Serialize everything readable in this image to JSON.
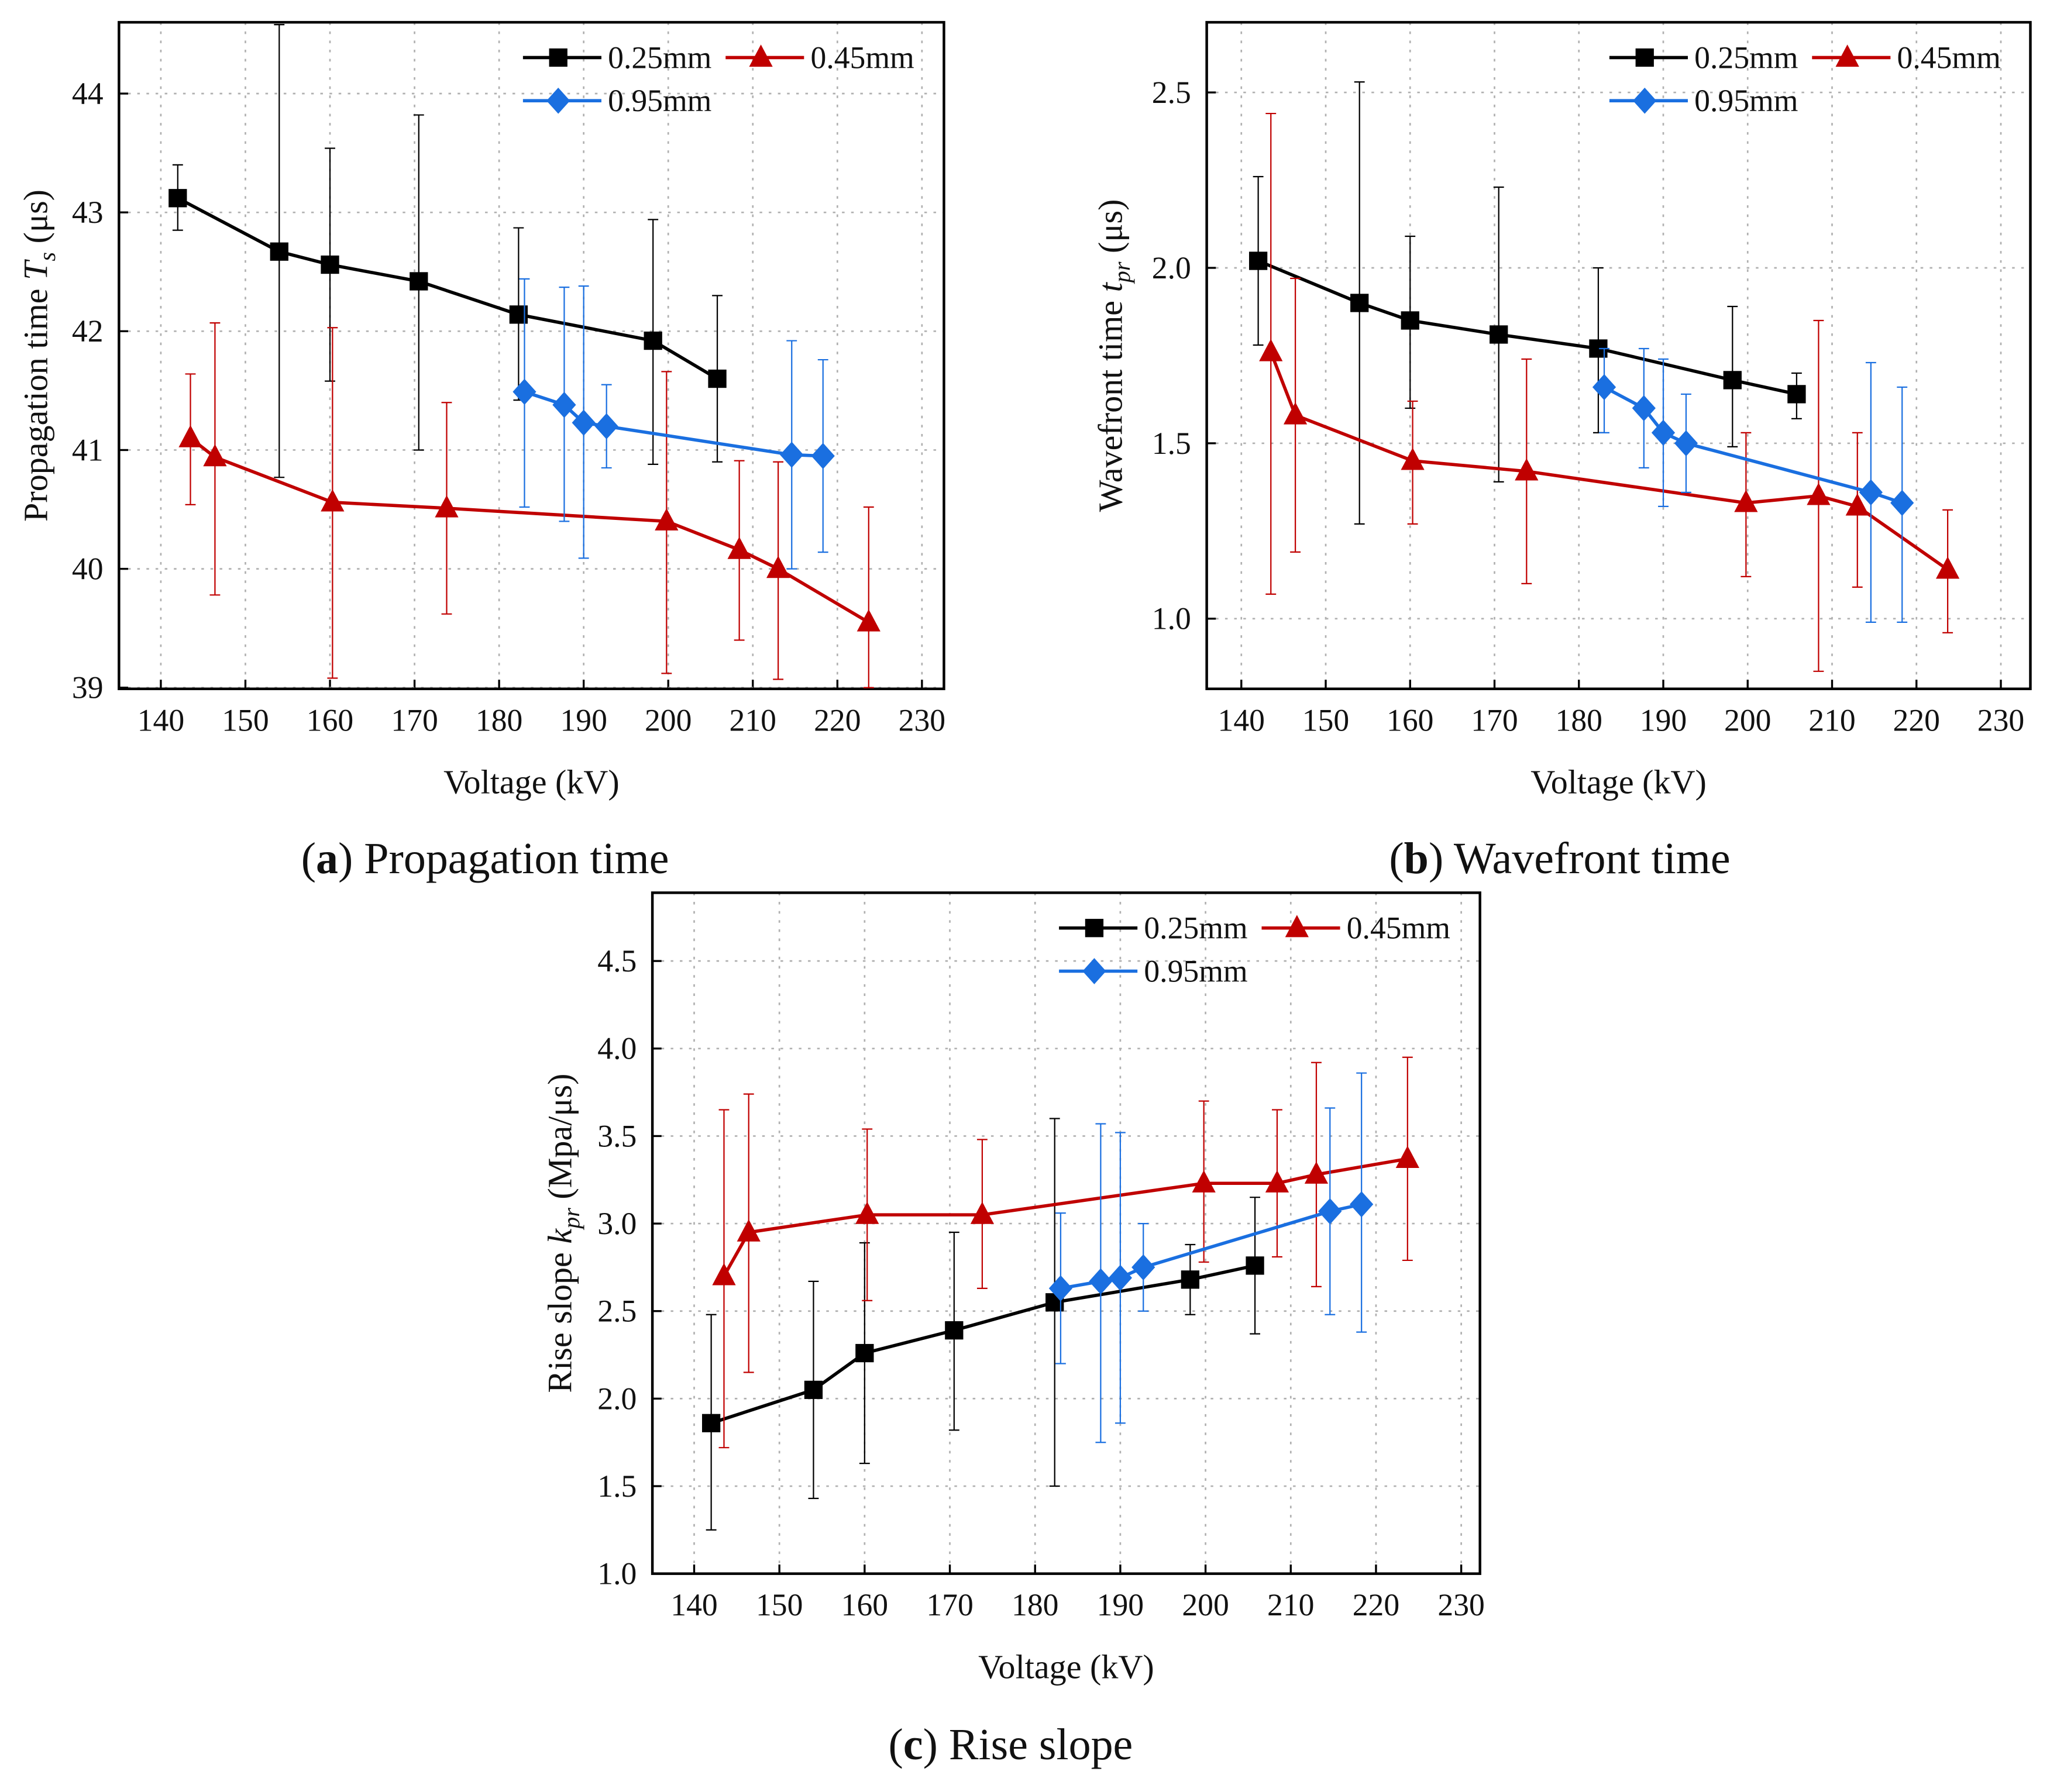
{
  "colors": {
    "s025": "#000000",
    "s045": "#c00000",
    "s095": "#1a6fe0",
    "grid": "#b0b0b0"
  },
  "chart_data": [
    {
      "id": "a",
      "type": "line",
      "caption": {
        "letter": "a",
        "text": " Propagation time"
      },
      "xlabel": "Voltage (kV)",
      "ylabel": {
        "text": "Propagation time ",
        "sym": "T",
        "sub": "s",
        "unit": " (μs)"
      },
      "xlim": [
        135.05,
        232.6
      ],
      "ylim": [
        38.99,
        44.6
      ],
      "xticks": [
        140,
        150,
        160,
        170,
        180,
        190,
        200,
        210,
        220,
        230
      ],
      "yticks": [
        39,
        40,
        41,
        42,
        43,
        44
      ],
      "ydec": 0,
      "series": [
        {
          "name": "0.25mm",
          "marker": "square",
          "color_key": "s025",
          "x": [
            142,
            154,
            160,
            170.5,
            182.3,
            198.2,
            205.8
          ],
          "y": [
            43.12,
            42.67,
            42.56,
            42.42,
            42.14,
            41.92,
            41.6
          ],
          "err_hi": [
            43.4,
            44.58,
            43.54,
            43.82,
            42.87,
            42.94,
            42.3
          ],
          "err_lo": [
            42.85,
            40.77,
            41.58,
            41.0,
            41.42,
            40.88,
            40.9
          ]
        },
        {
          "name": "0.45mm",
          "marker": "triangle",
          "color_key": "s045",
          "x": [
            143.5,
            146.4,
            160.3,
            173.8,
            199.8,
            208.4,
            213,
            223.7
          ],
          "y": [
            41.1,
            40.94,
            40.56,
            40.51,
            40.4,
            40.16,
            40.0,
            39.55
          ],
          "err_hi": [
            41.64,
            42.07,
            42.03,
            41.4,
            41.66,
            40.91,
            40.9,
            40.52
          ],
          "err_lo": [
            40.54,
            39.78,
            39.08,
            39.62,
            39.12,
            39.4,
            39.07,
            39.0
          ]
        },
        {
          "name": "0.95mm",
          "marker": "diamond",
          "color_key": "s095",
          "x": [
            183,
            187.7,
            190,
            192.7,
            214.6,
            218.3
          ],
          "y": [
            41.49,
            41.38,
            41.23,
            41.2,
            40.96,
            40.95
          ],
          "err_hi": [
            42.44,
            42.37,
            42.38,
            41.55,
            41.92,
            41.76
          ],
          "err_lo": [
            40.52,
            40.4,
            40.09,
            40.85,
            40.0,
            40.14
          ]
        }
      ]
    },
    {
      "id": "b",
      "type": "line",
      "caption": {
        "letter": "b",
        "text": " Wavefront time"
      },
      "xlabel": "Voltage (kV)",
      "ylabel": {
        "text": "Wavefront time ",
        "sym": "t",
        "sub": "pr",
        "unit": " (μs)"
      },
      "xlim": [
        135.9,
        233.5
      ],
      "ylim": [
        0.8,
        2.7
      ],
      "xticks": [
        140,
        150,
        160,
        170,
        180,
        190,
        200,
        210,
        220,
        230
      ],
      "yticks": [
        1.0,
        1.5,
        2.0,
        2.5
      ],
      "ydec": 1,
      "series": [
        {
          "name": "0.25mm",
          "marker": "square",
          "color_key": "s025",
          "x": [
            142,
            154,
            160,
            170.5,
            182.3,
            198.2,
            205.8
          ],
          "y": [
            2.02,
            1.9,
            1.85,
            1.81,
            1.77,
            1.68,
            1.64
          ],
          "err_hi": [
            2.26,
            2.53,
            2.09,
            2.23,
            2.0,
            1.89,
            1.7
          ],
          "err_lo": [
            1.78,
            1.27,
            1.6,
            1.39,
            1.53,
            1.49,
            1.57
          ]
        },
        {
          "name": "0.45mm",
          "marker": "triangle",
          "color_key": "s045",
          "x": [
            143.5,
            146.4,
            160.3,
            173.8,
            199.8,
            208.4,
            213,
            223.7
          ],
          "y": [
            1.76,
            1.58,
            1.45,
            1.42,
            1.33,
            1.35,
            1.32,
            1.14
          ],
          "err_hi": [
            2.44,
            1.97,
            1.62,
            1.74,
            1.53,
            1.85,
            1.53,
            1.31
          ],
          "err_lo": [
            1.07,
            1.19,
            1.27,
            1.1,
            1.12,
            0.85,
            1.09,
            0.96
          ]
        },
        {
          "name": "0.95mm",
          "marker": "diamond",
          "color_key": "s095",
          "x": [
            183,
            187.7,
            190,
            192.7,
            214.6,
            218.3
          ],
          "y": [
            1.66,
            1.6,
            1.53,
            1.5,
            1.36,
            1.33
          ],
          "err_hi": [
            1.77,
            1.77,
            1.74,
            1.64,
            1.73,
            1.66
          ],
          "err_lo": [
            1.53,
            1.43,
            1.32,
            1.36,
            0.99,
            0.99
          ]
        }
      ]
    },
    {
      "id": "c",
      "type": "line",
      "caption": {
        "letter": "c",
        "text": " Rise slope"
      },
      "xlabel": "Voltage (kV)",
      "ylabel": {
        "text": "Rise slope ",
        "sym": "k",
        "sub": "pr",
        "unit": " (Mpa/μs)"
      },
      "xlim": [
        135.1,
        232.2
      ],
      "ylim": [
        1.0,
        4.89
      ],
      "xticks": [
        140,
        150,
        160,
        170,
        180,
        190,
        200,
        210,
        220,
        230
      ],
      "yticks": [
        1.0,
        1.5,
        2.0,
        2.5,
        3.0,
        3.5,
        4.0,
        4.5
      ],
      "ydec": 1,
      "series": [
        {
          "name": "0.25mm",
          "marker": "square",
          "color_key": "s025",
          "x": [
            142,
            154,
            160,
            170.5,
            182.3,
            198.2,
            205.8
          ],
          "y": [
            1.86,
            2.05,
            2.26,
            2.39,
            2.55,
            2.68,
            2.76
          ],
          "err_hi": [
            2.48,
            2.67,
            2.89,
            2.95,
            3.6,
            2.88,
            3.15
          ],
          "err_lo": [
            1.25,
            1.43,
            1.63,
            1.82,
            1.5,
            2.48,
            2.37
          ]
        },
        {
          "name": "0.45mm",
          "marker": "triangle",
          "color_key": "s045",
          "x": [
            143.5,
            146.4,
            160.3,
            173.8,
            199.8,
            208.4,
            213,
            223.7
          ],
          "y": [
            2.7,
            2.95,
            3.05,
            3.05,
            3.23,
            3.23,
            3.28,
            3.37
          ],
          "err_hi": [
            3.65,
            3.74,
            3.54,
            3.48,
            3.7,
            3.65,
            3.92,
            3.95
          ],
          "err_lo": [
            1.72,
            2.15,
            2.56,
            2.63,
            2.78,
            2.81,
            2.64,
            2.79
          ]
        },
        {
          "name": "0.95mm",
          "marker": "diamond",
          "color_key": "s095",
          "x": [
            183,
            187.7,
            190,
            192.7,
            214.6,
            218.3
          ],
          "y": [
            2.63,
            2.67,
            2.69,
            2.75,
            3.07,
            3.11
          ],
          "err_hi": [
            3.06,
            3.57,
            3.52,
            3.0,
            3.66,
            3.86
          ],
          "err_lo": [
            2.2,
            1.75,
            1.86,
            2.5,
            2.48,
            2.38
          ]
        }
      ]
    }
  ]
}
